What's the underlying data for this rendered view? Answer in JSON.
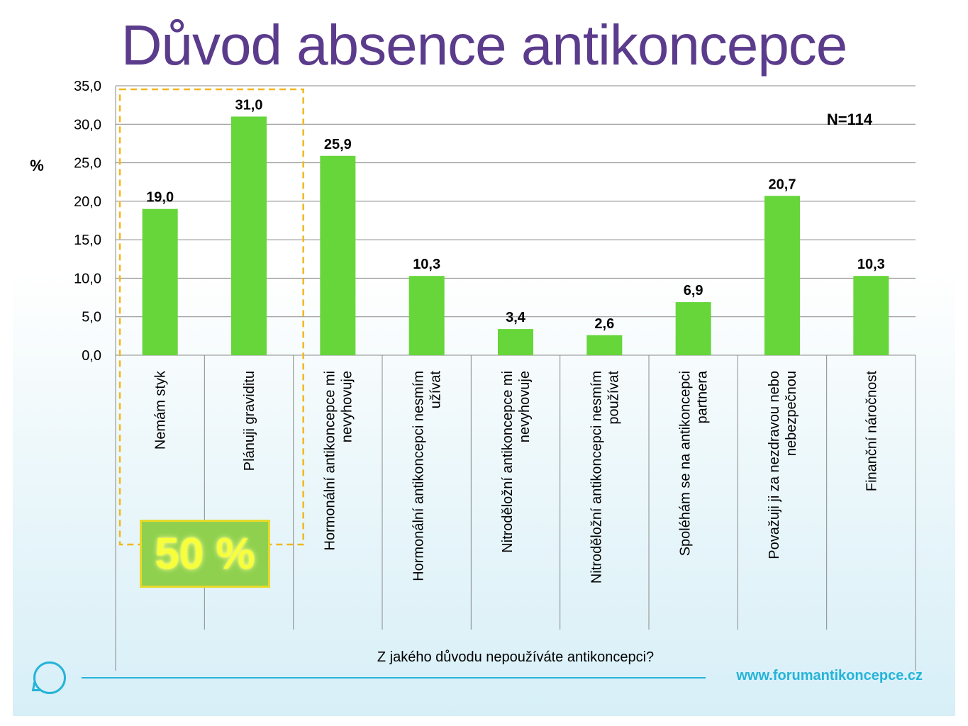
{
  "slide": {
    "title": "Důvod absence antikoncepce",
    "footer_url": "www.forumantikoncepce.cz",
    "highlight_label": "50 %"
  },
  "colors": {
    "bar": "#66d63a",
    "title": "#5b3b8c",
    "highlight_fill": "#8fd14f",
    "highlight_border": "#e8d92a",
    "dashed_box": "#f0b81e",
    "accent": "#26b3d8"
  },
  "chart_data": {
    "type": "bar",
    "title": "",
    "ylabel": "%",
    "xlabel": "Z jakého důvodu nepoužíváte antikoncepci?",
    "annotation": "N=114",
    "ylim": [
      0,
      35
    ],
    "ytick_labels": [
      "0,0",
      "5,0",
      "10,0",
      "15,0",
      "20,0",
      "25,0",
      "30,0",
      "35,0"
    ],
    "grid": true,
    "categories": [
      [
        "Nemám styk"
      ],
      [
        "Plánuji graviditu"
      ],
      [
        "Hormonální antikoncepce mi",
        "nevyhovuje"
      ],
      [
        "Hormonální antikoncepci nesmím",
        "užívat"
      ],
      [
        "Nitroděložní antikoncepce mi",
        "nevyhovuje"
      ],
      [
        "Nitroděložní antikoncepci nesmím",
        "používat"
      ],
      [
        "Spoléhám se na antikoncepci",
        "partnera"
      ],
      [
        "Považuji ji za nezdravou nebo",
        "nebezpečnou"
      ],
      [
        "Finanční náročnost"
      ]
    ],
    "values": [
      19.0,
      31.0,
      25.9,
      10.3,
      3.4,
      2.6,
      6.9,
      20.7,
      10.3
    ],
    "value_labels": [
      "19,0",
      "31,0",
      "25,9",
      "10,3",
      "3,4",
      "2,6",
      "6,9",
      "20,7",
      "10,3"
    ],
    "highlighted_categories": [
      0,
      1
    ]
  }
}
